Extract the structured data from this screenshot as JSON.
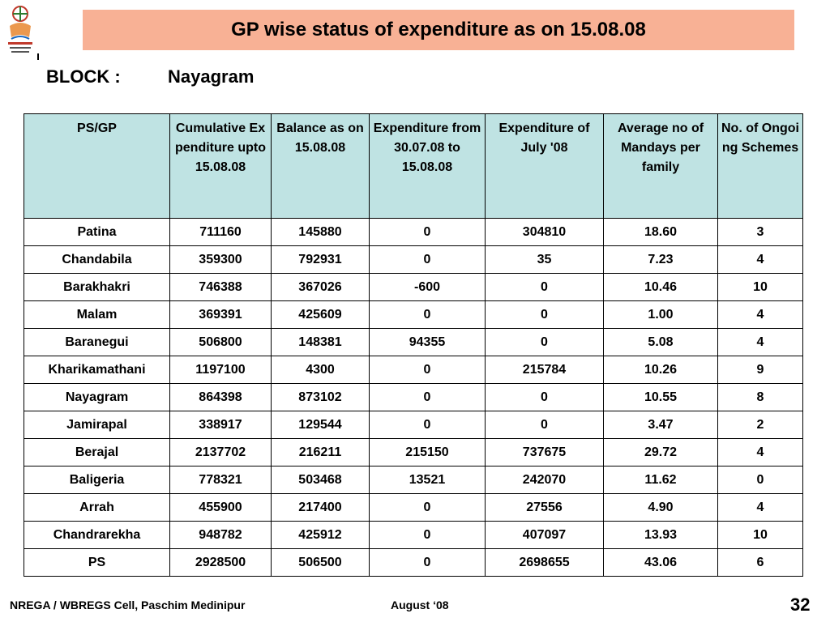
{
  "slide": {
    "title": "GP wise status of expenditure as on 15.08.08",
    "block_label": "BLOCK :",
    "block_value": "Nayagram"
  },
  "table": {
    "headers": [
      "PS/GP",
      "Cumulative Expenditure upto 15.08.08",
      "Balance as on 15.08.08",
      "Expenditure from 30.07.08 to 15.08.08",
      "Expenditure of  July '08",
      "Average no of Mandays per family",
      "No. of Ongoing Schemes"
    ],
    "rows": [
      [
        "Patina",
        "711160",
        "145880",
        "0",
        "304810",
        "18.60",
        "3"
      ],
      [
        "Chandabila",
        "359300",
        "792931",
        "0",
        "35",
        "7.23",
        "4"
      ],
      [
        "Barakhakri",
        "746388",
        "367026",
        "-600",
        "0",
        "10.46",
        "10"
      ],
      [
        "Malam",
        "369391",
        "425609",
        "0",
        "0",
        "1.00",
        "4"
      ],
      [
        "Baranegui",
        "506800",
        "148381",
        "94355",
        "0",
        "5.08",
        "4"
      ],
      [
        "Kharikamathani",
        "1197100",
        "4300",
        "0",
        "215784",
        "10.26",
        "9"
      ],
      [
        "Nayagram",
        "864398",
        "873102",
        "0",
        "0",
        "10.55",
        "8"
      ],
      [
        "Jamirapal",
        "338917",
        "129544",
        "0",
        "0",
        "3.47",
        "2"
      ],
      [
        "Berajal",
        "2137702",
        "216211",
        "215150",
        "737675",
        "29.72",
        "4"
      ],
      [
        "Baligeria",
        "778321",
        "503468",
        "13521",
        "242070",
        "11.62",
        "0"
      ],
      [
        "Arrah",
        "455900",
        "217400",
        "0",
        "27556",
        "4.90",
        "4"
      ],
      [
        "Chandrarekha",
        "948782",
        "425912",
        "0",
        "407097",
        "13.93",
        "10"
      ],
      [
        "PS",
        "2928500",
        "506500",
        "0",
        "2698655",
        "43.06",
        "6"
      ]
    ]
  },
  "footer": {
    "left": "NREGA / WBREGS Cell, Paschim Medinipur",
    "center": "August ‘08",
    "page": "32"
  },
  "colors": {
    "title_bg": "#f8b195",
    "header_bg": "#bfe3e3"
  },
  "icons": {
    "logo": "nrega-logo"
  }
}
